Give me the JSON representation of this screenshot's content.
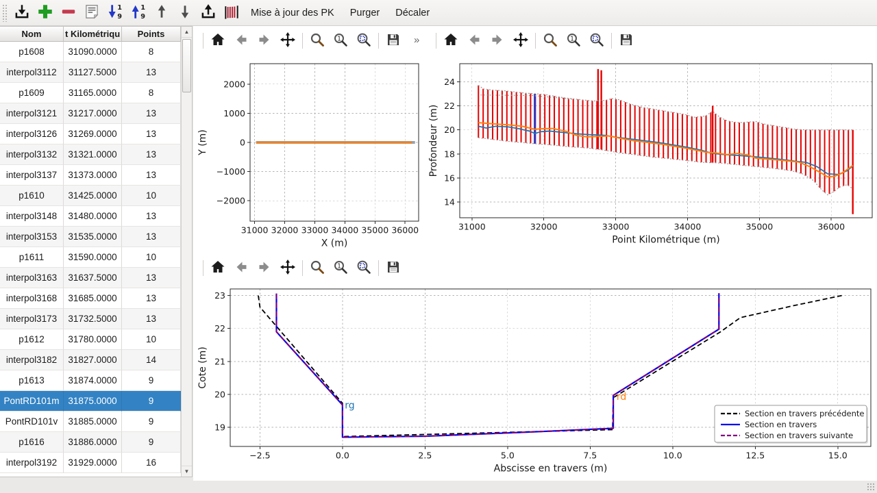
{
  "toolbar": {
    "menu_items": [
      "Mise à jour des PK",
      "Purger",
      "Décaler"
    ],
    "icon_names": [
      "import",
      "add",
      "remove",
      "edit",
      "sort-descending",
      "sort-ascending",
      "move-up",
      "move-down",
      "export",
      "sections"
    ]
  },
  "plot_toolbar": {
    "icons": [
      "home",
      "back",
      "forward",
      "pan",
      "zoom",
      "zoom-original",
      "zoom-region",
      "save"
    ],
    "overflow_label": "»"
  },
  "table": {
    "columns": [
      "Nom",
      "t Kilométriqu",
      "Points"
    ],
    "selected_name": "PontRD101m",
    "rows": [
      [
        "p1608",
        "31090.0000",
        "8"
      ],
      [
        "interpol3112",
        "31127.5000",
        "13"
      ],
      [
        "p1609",
        "31165.0000",
        "8"
      ],
      [
        "interpol3121",
        "31217.0000",
        "13"
      ],
      [
        "interpol3126",
        "31269.0000",
        "13"
      ],
      [
        "interpol3132",
        "31321.0000",
        "13"
      ],
      [
        "interpol3137",
        "31373.0000",
        "13"
      ],
      [
        "p1610",
        "31425.0000",
        "10"
      ],
      [
        "interpol3148",
        "31480.0000",
        "13"
      ],
      [
        "interpol3153",
        "31535.0000",
        "13"
      ],
      [
        "p1611",
        "31590.0000",
        "10"
      ],
      [
        "interpol3163",
        "31637.5000",
        "13"
      ],
      [
        "interpol3168",
        "31685.0000",
        "13"
      ],
      [
        "interpol3173",
        "31732.5000",
        "13"
      ],
      [
        "p1612",
        "31780.0000",
        "10"
      ],
      [
        "interpol3182",
        "31827.0000",
        "14"
      ],
      [
        "p1613",
        "31874.0000",
        "9"
      ],
      [
        "PontRD101m",
        "31875.0000",
        "9"
      ],
      [
        "PontRD101v",
        "31885.0000",
        "9"
      ],
      [
        "p1616",
        "31886.0000",
        "9"
      ],
      [
        "interpol3192",
        "31929.0000",
        "16"
      ]
    ]
  },
  "colors": {
    "selection": "#3383c4",
    "profile_blue": "#1f77b4",
    "profile_orange": "#ff7f0e",
    "bars_red": "#e60000",
    "section_blue": "#0000ee",
    "section_purple": "#800080",
    "section_black": "#000000"
  },
  "chart_data": [
    {
      "id": "fig-plan",
      "type": "line",
      "xlabel": "X (m)",
      "ylabel": "Y (m)",
      "xlim": [
        30850,
        36450
      ],
      "ylim": [
        -2700,
        2700
      ],
      "grid": true,
      "xticks": {
        "values": [
          31000,
          32000,
          33000,
          34000,
          35000,
          36000
        ],
        "labels": [
          "31000",
          "32000",
          "33000",
          "34000",
          "35000",
          "36000"
        ]
      },
      "yticks": {
        "values": [
          -2000,
          -1000,
          0,
          1000,
          2000
        ],
        "labels": [
          "−2000",
          "−1000",
          "0",
          "1000",
          "2000"
        ]
      },
      "series": [
        {
          "name": "trace-fond",
          "color": "#9aa2ab",
          "width": 4,
          "points": [
            [
              31050,
              0
            ],
            [
              36330,
              0
            ]
          ]
        },
        {
          "name": "axe-riviere",
          "color": "#ff7f0e",
          "width": 2.6,
          "points": [
            [
              31050,
              0
            ],
            [
              36230,
              0
            ]
          ]
        }
      ]
    },
    {
      "id": "fig-profil",
      "type": "profile",
      "xlabel": "Point Kilométrique (m)",
      "ylabel": "Profondeur (m)",
      "xlim": [
        30830,
        36570
      ],
      "ylim": [
        12.7,
        25.5
      ],
      "grid": true,
      "xticks": {
        "values": [
          31000,
          32000,
          33000,
          34000,
          35000,
          36000
        ],
        "labels": [
          "31000",
          "32000",
          "33000",
          "34000",
          "35000",
          "36000"
        ]
      },
      "yticks": {
        "values": [
          14,
          16,
          18,
          20,
          22,
          24
        ],
        "labels": [
          "14",
          "16",
          "18",
          "20",
          "22",
          "24"
        ]
      },
      "bars": {
        "color": "#e60000",
        "start": 31090,
        "end": 36290,
        "step": 66,
        "top": [
          [
            31090,
            23.7
          ],
          [
            31160,
            23.4
          ],
          [
            31300,
            23.3
          ],
          [
            31450,
            23.25
          ],
          [
            31600,
            23.15
          ],
          [
            31750,
            23.05
          ],
          [
            31875,
            23.0
          ],
          [
            32000,
            22.95
          ],
          [
            32150,
            22.8
          ],
          [
            32300,
            22.65
          ],
          [
            32450,
            22.55
          ],
          [
            32600,
            22.45
          ],
          [
            32700,
            22.4
          ],
          [
            32850,
            22.45
          ],
          [
            32950,
            22.6
          ],
          [
            33050,
            22.5
          ],
          [
            33200,
            22.15
          ],
          [
            33350,
            21.9
          ],
          [
            33500,
            21.75
          ],
          [
            33650,
            21.6
          ],
          [
            33800,
            21.45
          ],
          [
            33950,
            21.3
          ],
          [
            34100,
            21.05
          ],
          [
            34250,
            21.15
          ],
          [
            34350,
            21.55
          ],
          [
            34450,
            21.05
          ],
          [
            34550,
            20.75
          ],
          [
            34700,
            20.6
          ],
          [
            34850,
            20.65
          ],
          [
            34950,
            20.7
          ],
          [
            35050,
            20.5
          ],
          [
            35200,
            20.35
          ],
          [
            35350,
            20.2
          ],
          [
            35500,
            20.05
          ],
          [
            35650,
            20.0
          ],
          [
            36300,
            20.0
          ]
        ],
        "bottom": [
          [
            31090,
            19.35
          ],
          [
            31300,
            19.2
          ],
          [
            31500,
            19.05
          ],
          [
            31700,
            18.95
          ],
          [
            31875,
            18.85
          ],
          [
            32100,
            18.75
          ],
          [
            32350,
            18.6
          ],
          [
            32600,
            18.5
          ],
          [
            32800,
            18.35
          ],
          [
            33000,
            18.15
          ],
          [
            33250,
            17.95
          ],
          [
            33500,
            17.75
          ],
          [
            33750,
            17.6
          ],
          [
            34000,
            17.45
          ],
          [
            34200,
            17.3
          ],
          [
            34450,
            17.25
          ],
          [
            34700,
            17.1
          ],
          [
            34950,
            16.95
          ],
          [
            35200,
            16.8
          ],
          [
            35450,
            16.6
          ],
          [
            35600,
            16.35
          ],
          [
            35750,
            15.8
          ],
          [
            35870,
            15.0
          ],
          [
            35950,
            14.6
          ],
          [
            36030,
            14.85
          ],
          [
            36120,
            15.25
          ],
          [
            36220,
            15.45
          ],
          [
            36300,
            15.1
          ]
        ]
      },
      "special_bars": [
        {
          "pk": 32755,
          "top": 25.05,
          "bottom": 18.4
        },
        {
          "pk": 32800,
          "top": 24.95,
          "bottom": 18.38
        },
        {
          "pk": 34350,
          "top": 22.0,
          "bottom": 17.28
        },
        {
          "pk": 36300,
          "top": 20.0,
          "bottom": 13.0
        }
      ],
      "selected_bar": {
        "pk": 31875,
        "top": 23.0,
        "bottom": 18.85,
        "color": "#3434bb"
      },
      "envelope_color": "#9a9a9a",
      "extra_dotted": [
        [
          [
            31120,
            22.9
          ],
          [
            31850,
            22.85
          ],
          [
            32400,
            22.55
          ]
        ]
      ],
      "series": [
        {
          "name": "ligne-bleue",
          "color": "#1f77b4",
          "width": 1.8,
          "points": [
            [
              31090,
              20.3
            ],
            [
              31200,
              20.15
            ],
            [
              31330,
              20.3
            ],
            [
              31500,
              20.25
            ],
            [
              31650,
              20.1
            ],
            [
              31800,
              19.9
            ],
            [
              31875,
              19.7
            ],
            [
              31960,
              19.85
            ],
            [
              32080,
              19.9
            ],
            [
              32250,
              19.8
            ],
            [
              32450,
              19.68
            ],
            [
              32650,
              19.6
            ],
            [
              32850,
              19.55
            ],
            [
              33000,
              19.4
            ],
            [
              33200,
              19.25
            ],
            [
              33400,
              19.1
            ],
            [
              33600,
              18.95
            ],
            [
              33800,
              18.75
            ],
            [
              34000,
              18.55
            ],
            [
              34200,
              18.3
            ],
            [
              34350,
              18.05
            ],
            [
              34500,
              17.95
            ],
            [
              34700,
              17.88
            ],
            [
              34900,
              17.78
            ],
            [
              35100,
              17.68
            ],
            [
              35300,
              17.55
            ],
            [
              35500,
              17.4
            ],
            [
              35650,
              17.3
            ],
            [
              35800,
              16.95
            ],
            [
              35950,
              16.35
            ],
            [
              36100,
              16.3
            ],
            [
              36220,
              16.6
            ],
            [
              36300,
              17.0
            ]
          ]
        },
        {
          "name": "ligne-orange",
          "color": "#ff7f0e",
          "width": 2,
          "points": [
            [
              31090,
              20.6
            ],
            [
              31300,
              20.5
            ],
            [
              31500,
              20.42
            ],
            [
              31700,
              20.3
            ],
            [
              31875,
              20.05
            ],
            [
              32000,
              20.1
            ],
            [
              32120,
              20.12
            ],
            [
              32300,
              19.9
            ],
            [
              32450,
              19.55
            ],
            [
              32600,
              19.42
            ],
            [
              32750,
              19.45
            ],
            [
              32900,
              19.5
            ],
            [
              33050,
              19.32
            ],
            [
              33250,
              19.1
            ],
            [
              33450,
              18.95
            ],
            [
              33650,
              18.8
            ],
            [
              33850,
              18.6
            ],
            [
              34050,
              18.4
            ],
            [
              34250,
              18.15
            ],
            [
              34400,
              18.08
            ],
            [
              34550,
              17.95
            ],
            [
              34700,
              18.05
            ],
            [
              34850,
              17.9
            ],
            [
              34950,
              17.65
            ],
            [
              35150,
              17.55
            ],
            [
              35350,
              17.45
            ],
            [
              35550,
              17.32
            ],
            [
              35700,
              16.95
            ],
            [
              35850,
              16.45
            ],
            [
              35950,
              16.1
            ],
            [
              36050,
              16.15
            ],
            [
              36150,
              16.4
            ],
            [
              36300,
              17.05
            ]
          ]
        }
      ]
    },
    {
      "id": "fig-section",
      "type": "line",
      "xlabel": "Abscisse en travers (m)",
      "ylabel": "Cote (m)",
      "xlim": [
        -3.4,
        16.0
      ],
      "ylim": [
        18.42,
        23.2
      ],
      "grid": true,
      "xticks": {
        "values": [
          -2.5,
          0,
          2.5,
          5,
          7.5,
          10,
          12.5,
          15
        ],
        "labels": [
          "−2.5",
          "0.0",
          "2.5",
          "5.0",
          "7.5",
          "10.0",
          "12.5",
          "15.0"
        ]
      },
      "yticks": {
        "values": [
          19,
          20,
          21,
          22,
          23
        ],
        "labels": [
          "19",
          "20",
          "21",
          "22",
          "23"
        ]
      },
      "series": [
        {
          "name": "section-precedente",
          "color": "#000000",
          "width": 1.8,
          "dash": "7,4",
          "points": [
            [
              -2.55,
              23.0
            ],
            [
              -2.5,
              22.65
            ],
            [
              0.0,
              19.73
            ],
            [
              0.0,
              18.72
            ],
            [
              8.18,
              18.93
            ],
            [
              8.2,
              19.9
            ],
            [
              11.45,
              21.9
            ],
            [
              12.05,
              22.33
            ],
            [
              13.6,
              22.68
            ],
            [
              15.12,
              23.0
            ]
          ]
        },
        {
          "name": "section-courante",
          "color": "#0000ee",
          "width": 2.2,
          "points": [
            [
              -2.0,
              23.06
            ],
            [
              -2.0,
              21.9
            ],
            [
              0.0,
              19.68
            ],
            [
              0.0,
              18.7
            ],
            [
              2.5,
              18.73
            ],
            [
              5.5,
              18.85
            ],
            [
              8.2,
              18.97
            ],
            [
              8.2,
              19.97
            ],
            [
              11.4,
              21.98
            ],
            [
              11.4,
              23.07
            ]
          ]
        },
        {
          "name": "section-suivante",
          "color": "#800080",
          "width": 2,
          "dash": "8,5",
          "points": [
            [
              -2.0,
              23.06
            ],
            [
              -2.0,
              21.9
            ],
            [
              0.0,
              19.68
            ],
            [
              0.0,
              18.7
            ],
            [
              2.5,
              18.73
            ],
            [
              5.5,
              18.85
            ],
            [
              8.2,
              18.97
            ],
            [
              8.2,
              19.97
            ],
            [
              11.4,
              21.98
            ],
            [
              11.4,
              23.07
            ]
          ]
        }
      ],
      "annotations": [
        {
          "text": "rg",
          "x": 0.07,
          "y": 19.57,
          "color": "#1f77b4"
        },
        {
          "text": "rd",
          "x": 8.3,
          "y": 19.83,
          "color": "#ff7f0e"
        }
      ],
      "legend": {
        "entries": [
          {
            "label": "Section en travers précédente",
            "color": "#000000",
            "dash": "6,3"
          },
          {
            "label": "Section en travers",
            "color": "#0000ee"
          },
          {
            "label": "Section en travers suivante",
            "color": "#800080",
            "dash": "6,3"
          }
        ]
      }
    }
  ]
}
